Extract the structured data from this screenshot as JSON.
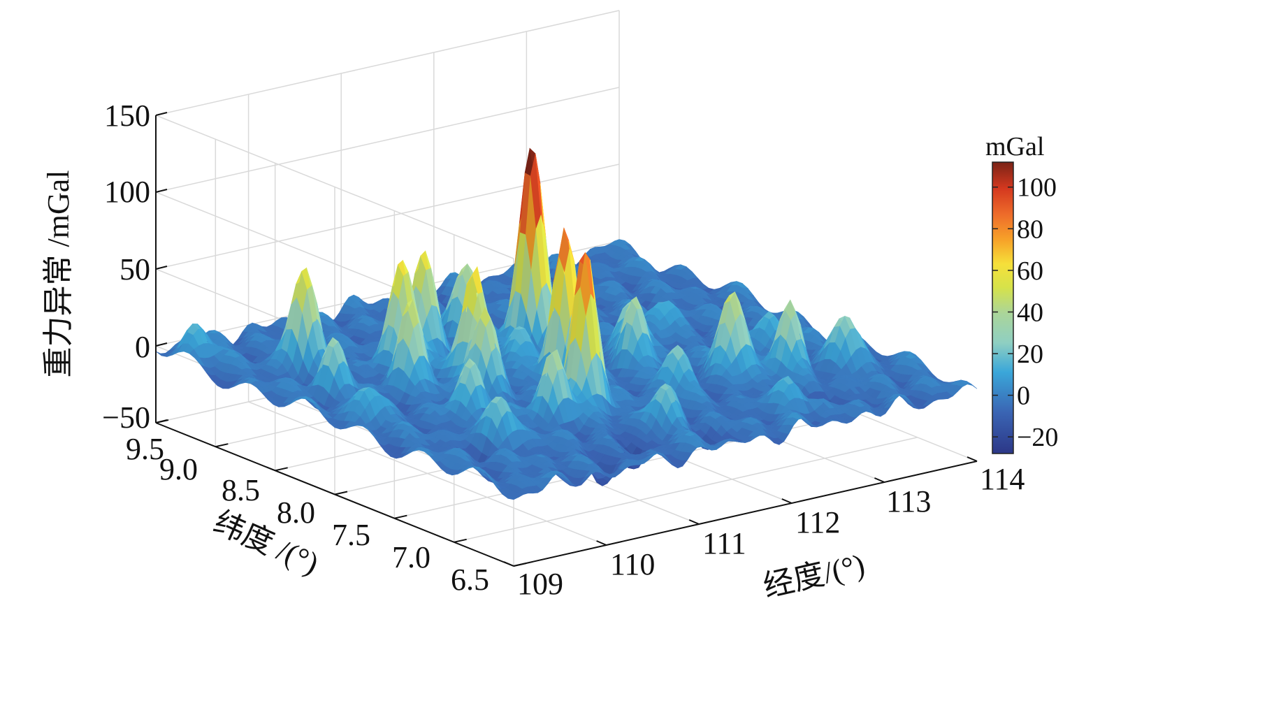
{
  "chart_data": {
    "type": "surface3d",
    "title": "",
    "zlabel": "重力异常 /mGal",
    "ylabel": "纬度 /(°)",
    "xlabel": "经度/(°)",
    "x_range": [
      109,
      114
    ],
    "y_range": [
      6.5,
      9.5
    ],
    "z_range": [
      -50,
      150
    ],
    "x_ticks": [
      "109",
      "110",
      "111",
      "112",
      "113",
      "114"
    ],
    "y_ticks": [
      "6.5",
      "7.0",
      "7.5",
      "8.0",
      "8.5",
      "9.0",
      "9.5"
    ],
    "z_ticks": [
      "−50",
      "0",
      "50",
      "100",
      "150"
    ],
    "colorbar": {
      "label": "mGal",
      "range": [
        -28,
        112
      ],
      "ticks": [
        "−20",
        "0",
        "20",
        "40",
        "60",
        "80",
        "100"
      ],
      "tick_values": [
        -20,
        0,
        20,
        40,
        60,
        80,
        100
      ]
    },
    "baseline": -3,
    "peaks": [
      {
        "lon": 111.7,
        "lat": 8.45,
        "value": 128
      },
      {
        "lon": 111.3,
        "lat": 7.85,
        "value": 97
      },
      {
        "lon": 111.0,
        "lat": 7.45,
        "value": 100
      },
      {
        "lon": 110.7,
        "lat": 8.15,
        "value": 70
      },
      {
        "lon": 110.45,
        "lat": 8.55,
        "value": 68
      },
      {
        "lon": 110.15,
        "lat": 8.25,
        "value": 50
      },
      {
        "lon": 110.8,
        "lat": 8.65,
        "value": 58
      },
      {
        "lon": 109.75,
        "lat": 8.85,
        "value": 58
      },
      {
        "lon": 110.55,
        "lat": 7.95,
        "value": 46
      },
      {
        "lon": 110.6,
        "lat": 7.4,
        "value": 40
      },
      {
        "lon": 111.4,
        "lat": 8.75,
        "value": 45
      },
      {
        "lon": 112.6,
        "lat": 7.45,
        "value": 54
      },
      {
        "lon": 113.0,
        "lat": 7.3,
        "value": 42
      },
      {
        "lon": 112.05,
        "lat": 7.85,
        "value": 40
      },
      {
        "lon": 112.3,
        "lat": 8.05,
        "value": 30
      },
      {
        "lon": 111.9,
        "lat": 7.4,
        "value": 28
      },
      {
        "lon": 110.1,
        "lat": 7.7,
        "value": 30
      },
      {
        "lon": 109.85,
        "lat": 7.25,
        "value": 25
      },
      {
        "lon": 109.5,
        "lat": 8.4,
        "value": 28
      },
      {
        "lon": 109.3,
        "lat": 7.95,
        "value": 20
      },
      {
        "lon": 111.2,
        "lat": 6.95,
        "value": 22
      },
      {
        "lon": 110.75,
        "lat": 6.85,
        "value": -24
      },
      {
        "lon": 112.4,
        "lat": 6.8,
        "value": 15
      },
      {
        "lon": 113.3,
        "lat": 7.7,
        "value": 20
      },
      {
        "lon": 113.5,
        "lat": 7.2,
        "value": 28
      },
      {
        "lon": 112.9,
        "lat": 8.25,
        "value": 18
      },
      {
        "lon": 110.2,
        "lat": 6.7,
        "value": -18
      },
      {
        "lon": 111.5,
        "lat": 6.75,
        "value": -12
      },
      {
        "lon": 112.8,
        "lat": 6.85,
        "value": -18
      },
      {
        "lon": 109.6,
        "lat": 7.2,
        "value": -12
      },
      {
        "lon": 109.2,
        "lat": 9.3,
        "value": 22
      },
      {
        "lon": 111.3,
        "lat": 8.2,
        "value": 24
      }
    ]
  }
}
